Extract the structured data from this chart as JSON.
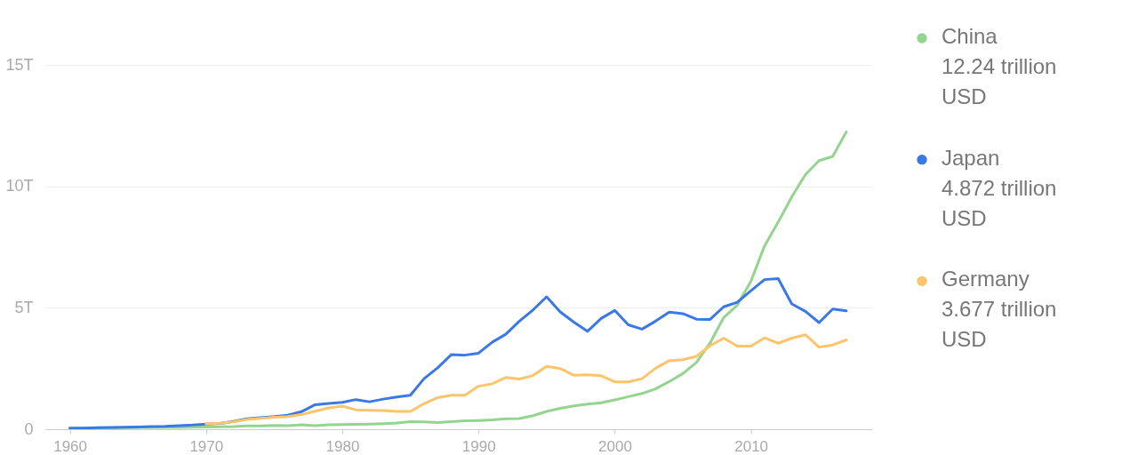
{
  "chart_data": {
    "type": "line",
    "x": [
      1960,
      1961,
      1962,
      1963,
      1964,
      1965,
      1966,
      1967,
      1968,
      1969,
      1970,
      1971,
      1972,
      1973,
      1974,
      1975,
      1976,
      1977,
      1978,
      1979,
      1980,
      1981,
      1982,
      1983,
      1984,
      1985,
      1986,
      1987,
      1988,
      1989,
      1990,
      1991,
      1992,
      1993,
      1994,
      1995,
      1996,
      1997,
      1998,
      1999,
      2000,
      2001,
      2002,
      2003,
      2004,
      2005,
      2006,
      2007,
      2008,
      2009,
      2010,
      2011,
      2012,
      2013,
      2014,
      2015,
      2016,
      2017
    ],
    "series": [
      {
        "name": "China",
        "color": "#93d58e",
        "values": [
          0.06,
          0.05,
          0.05,
          0.05,
          0.06,
          0.07,
          0.08,
          0.07,
          0.07,
          0.08,
          0.09,
          0.1,
          0.11,
          0.14,
          0.14,
          0.16,
          0.15,
          0.18,
          0.15,
          0.18,
          0.19,
          0.2,
          0.21,
          0.23,
          0.26,
          0.31,
          0.3,
          0.27,
          0.31,
          0.35,
          0.36,
          0.38,
          0.43,
          0.44,
          0.56,
          0.73,
          0.86,
          0.96,
          1.03,
          1.09,
          1.21,
          1.34,
          1.47,
          1.66,
          1.96,
          2.29,
          2.75,
          3.55,
          4.6,
          5.11,
          6.09,
          7.55,
          8.53,
          9.57,
          10.48,
          11.06,
          11.23,
          12.24
        ]
      },
      {
        "name": "Japan",
        "color": "#3b78e7",
        "values": [
          0.04,
          0.05,
          0.06,
          0.07,
          0.08,
          0.09,
          0.11,
          0.12,
          0.15,
          0.17,
          0.21,
          0.24,
          0.32,
          0.43,
          0.48,
          0.52,
          0.58,
          0.72,
          1.01,
          1.06,
          1.11,
          1.22,
          1.13,
          1.24,
          1.33,
          1.4,
          2.08,
          2.53,
          3.07,
          3.05,
          3.13,
          3.58,
          3.91,
          4.45,
          4.91,
          5.45,
          4.83,
          4.41,
          4.03,
          4.56,
          4.89,
          4.3,
          4.12,
          4.45,
          4.82,
          4.76,
          4.53,
          4.52,
          5.04,
          5.23,
          5.7,
          6.16,
          6.2,
          5.16,
          4.85,
          4.39,
          4.95,
          4.872
        ]
      },
      {
        "name": "Germany",
        "color": "#fdc46b",
        "values": [
          null,
          null,
          null,
          null,
          null,
          null,
          null,
          null,
          null,
          null,
          0.22,
          0.25,
          0.3,
          0.4,
          0.45,
          0.49,
          0.52,
          0.6,
          0.74,
          0.88,
          0.95,
          0.8,
          0.78,
          0.77,
          0.73,
          0.73,
          1.05,
          1.3,
          1.4,
          1.4,
          1.77,
          1.87,
          2.13,
          2.07,
          2.21,
          2.59,
          2.5,
          2.22,
          2.24,
          2.2,
          1.95,
          1.95,
          2.08,
          2.51,
          2.82,
          2.86,
          3.0,
          3.44,
          3.75,
          3.42,
          3.42,
          3.76,
          3.54,
          3.75,
          3.89,
          3.38,
          3.47,
          3.677
        ]
      }
    ],
    "annotations": [
      "12.24 trillion USD",
      "4.872 trillion USD",
      "3.677 trillion USD"
    ],
    "xlim": [
      1958.2,
      2018.9
    ],
    "xticks": [
      1960,
      1970,
      1980,
      1990,
      2000,
      2010
    ],
    "ylim": [
      0,
      15
    ],
    "yticks": [
      0,
      {
        "value": 5,
        "label": "5T"
      },
      {
        "value": 10,
        "label": "10T"
      },
      {
        "value": 15,
        "label": "15T"
      }
    ],
    "grid": "y",
    "legend": "right"
  }
}
